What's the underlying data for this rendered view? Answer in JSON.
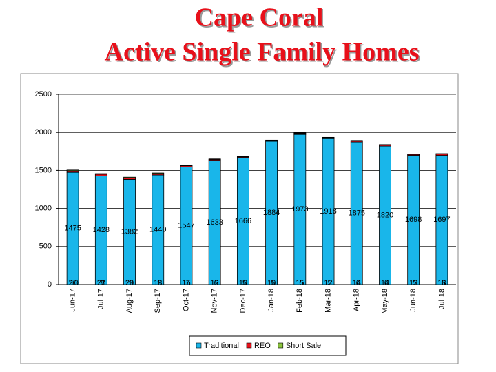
{
  "chart_data": {
    "type": "stacked_bar",
    "title": "Cape Coral",
    "subtitle": "Active Single Family Homes",
    "categories": [
      "Jun-17",
      "Jul-17",
      "Aug-17",
      "Sep-17",
      "Oct-17",
      "Nov-17",
      "Dec-17",
      "Jan-18",
      "Feb-18",
      "Mar-18",
      "Apr-18",
      "May-18",
      "Jun-18",
      "Jul-18"
    ],
    "series": [
      {
        "name": "Traditional",
        "color": "#19b6ea",
        "values": [
          1475,
          1428,
          1382,
          1440,
          1547,
          1633,
          1666,
          1884,
          1973,
          1918,
          1875,
          1820,
          1698,
          1697
        ]
      },
      {
        "name": "REO",
        "color": "#e8101a",
        "values": [
          20,
          22,
          20,
          18,
          15,
          12,
          10,
          10,
          15,
          12,
          14,
          14,
          12,
          18
        ]
      },
      {
        "name": "Short Sale",
        "color": "#8cc63f",
        "values": [
          10,
          8,
          9,
          9,
          7,
          6,
          5,
          5,
          6,
          5,
          6,
          6,
          5,
          6
        ]
      }
    ],
    "ylim": [
      0,
      2500
    ],
    "yticks": [
      0,
      500,
      1000,
      1500,
      2000,
      2500
    ],
    "grid": true,
    "legend": "bottom"
  }
}
